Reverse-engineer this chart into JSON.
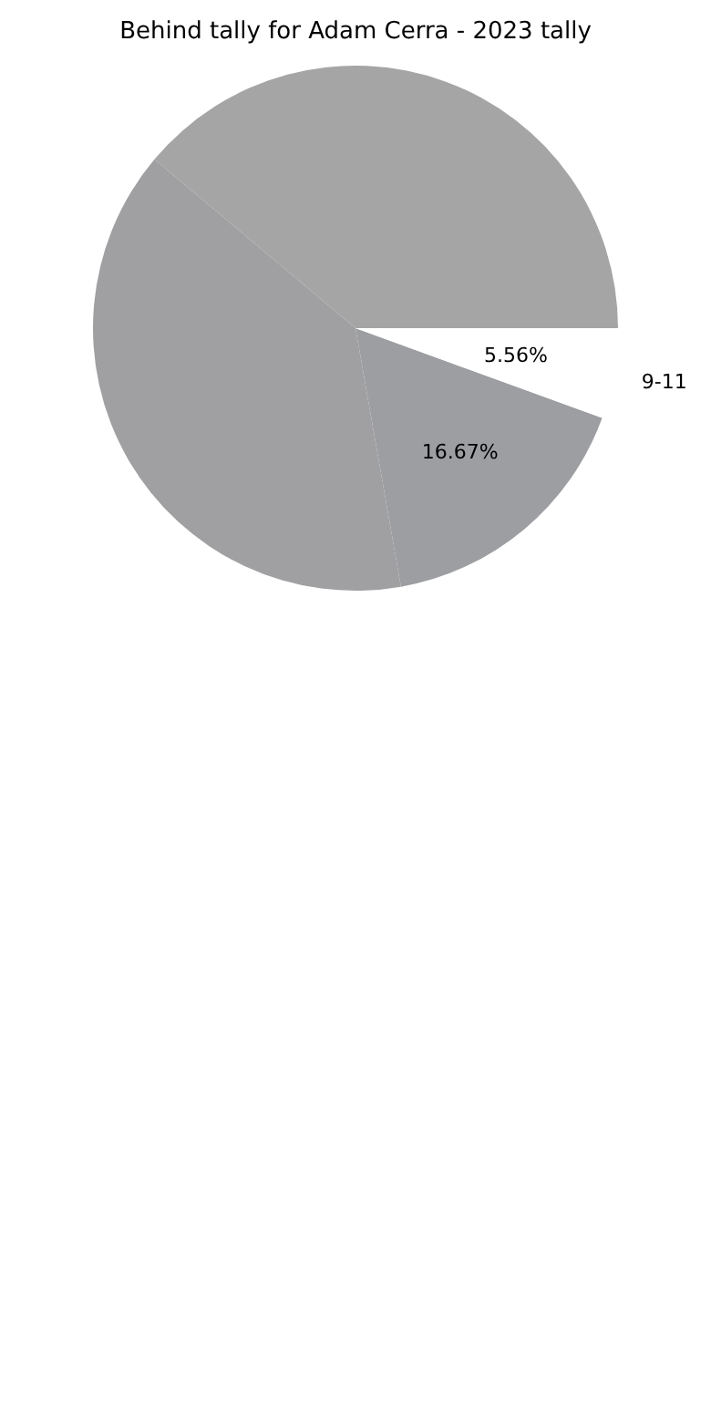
{
  "chart_data": {
    "type": "pie",
    "title": "Behind tally for Adam Cerra - 2023 tally",
    "categories": [
      null,
      null,
      null,
      "9-11"
    ],
    "values": [
      38.89,
      38.89,
      16.67,
      5.56
    ],
    "value_labels": [
      null,
      null,
      "16.67%",
      "5.56%"
    ],
    "colors": [
      "#a5a5a5",
      "#a0a0a2",
      "#9c9ea1",
      "#ffffff"
    ],
    "legend": false
  }
}
